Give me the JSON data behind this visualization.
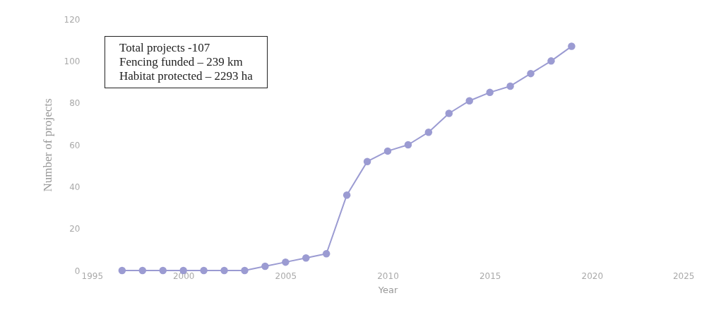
{
  "chart_data": {
    "type": "line",
    "xlabel": "Year",
    "ylabel": "Number of projects",
    "x": [
      1997,
      1998,
      1999,
      2000,
      2001,
      2002,
      2003,
      2004,
      2005,
      2006,
      2007,
      2008,
      2009,
      2010,
      2011,
      2012,
      2013,
      2014,
      2015,
      2016,
      2017,
      2018,
      2019
    ],
    "series": [
      {
        "color": "#9b9bd2",
        "values": [
          0,
          0,
          0,
          0,
          0,
          0,
          0,
          2,
          4,
          6,
          8,
          36,
          52,
          57,
          60,
          66,
          75,
          81,
          85,
          88,
          94,
          100,
          107
        ]
      }
    ],
    "xlim": [
      1995,
      2025
    ],
    "xticks": [
      1995,
      2000,
      2005,
      2010,
      2015,
      2020,
      2025
    ],
    "ylim": [
      0,
      120
    ],
    "yticks": [
      0,
      20,
      40,
      60,
      80,
      100,
      120
    ],
    "grid": false,
    "marker": "circle",
    "line_style": "solid",
    "annotations": [
      "Total projects -107",
      "Fencing funded – 239 km",
      "Habitat protected – 2293 ha"
    ]
  }
}
